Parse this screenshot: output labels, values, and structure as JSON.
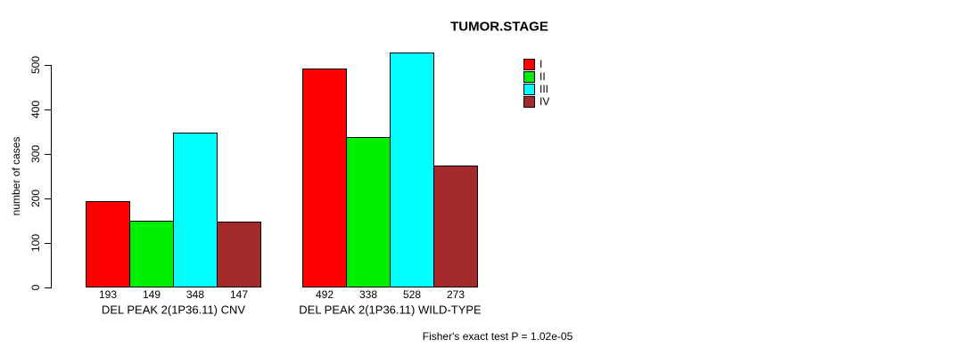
{
  "header": {
    "title": "TUMOR.STAGE"
  },
  "footnote": "Fisher's exact test P = 1.02e-05",
  "colors": {
    "stage_I": "#FF0000",
    "stage_II": "#00EE00",
    "stage_III": "#00FFFF",
    "stage_IV": "#A52A2A",
    "axis": "#000000",
    "background": "#FFFFFF"
  },
  "chart_data": {
    "type": "bar",
    "title": "TUMOR.STAGE",
    "xlabel": "",
    "ylabel": "number of cases",
    "ylim": [
      0,
      540
    ],
    "yticks": [
      0,
      100,
      200,
      300,
      400,
      500
    ],
    "grid": false,
    "legend_position": "top-right",
    "legend_entries": [
      "I",
      "II",
      "III",
      "IV"
    ],
    "categories": [
      "DEL PEAK 2(1P36.11) CNV",
      "DEL PEAK 2(1P36.11) WILD-TYPE"
    ],
    "series": [
      {
        "name": "I",
        "color": "#FF0000",
        "values": [
          193,
          492
        ]
      },
      {
        "name": "II",
        "color": "#00EE00",
        "values": [
          149,
          338
        ]
      },
      {
        "name": "III",
        "color": "#00FFFF",
        "values": [
          348,
          528
        ]
      },
      {
        "name": "IV",
        "color": "#A52A2A",
        "values": [
          147,
          273
        ]
      }
    ],
    "bar_value_labels_shown": true,
    "annotation": "Fisher's exact test P = 1.02e-05"
  }
}
